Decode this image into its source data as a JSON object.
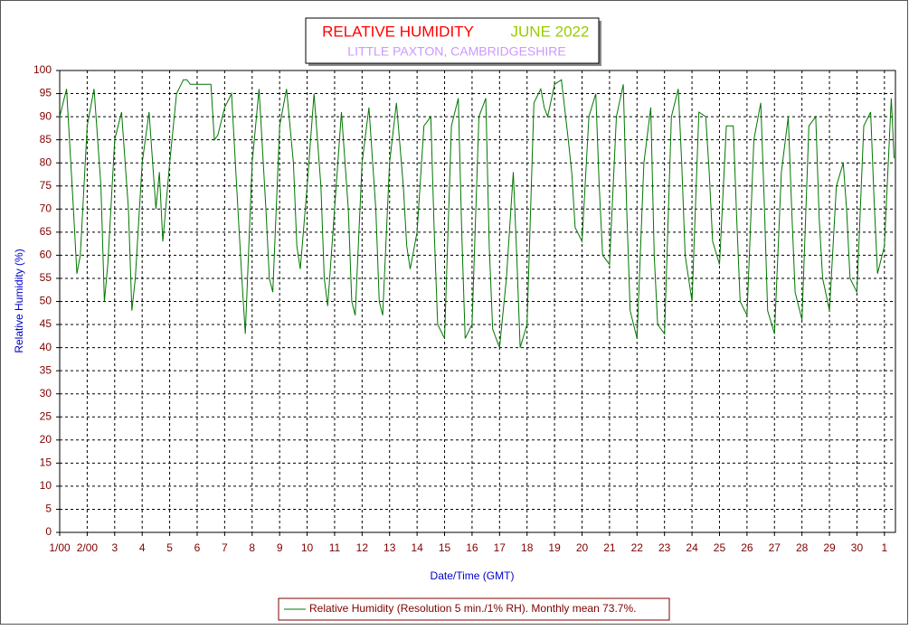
{
  "chart_data": {
    "type": "line",
    "title": "RELATIVE HUMIDITY",
    "title_period": "JUNE 2022",
    "subtitle": "LITTLE PAXTON, CAMBRIDGESHIRE",
    "x_label": "Date/Time (GMT)",
    "y_label": "Relative Humidity (%)",
    "x": [
      1,
      1.25,
      1.5,
      1.625,
      1.75,
      2,
      2.25,
      2.5,
      2.625,
      2.75,
      3,
      3.25,
      3.5,
      3.625,
      3.75,
      4,
      4.25,
      4.5,
      4.625,
      4.75,
      5,
      5.25,
      5.5,
      5.625,
      5.75,
      6,
      6.25,
      6.5,
      6.625,
      6.75,
      7,
      7.25,
      7.5,
      7.625,
      7.75,
      8,
      8.25,
      8.5,
      8.625,
      8.75,
      9,
      9.25,
      9.5,
      9.625,
      9.75,
      10,
      10.25,
      10.5,
      10.625,
      10.75,
      11,
      11.25,
      11.5,
      11.625,
      11.75,
      12,
      12.25,
      12.5,
      12.625,
      12.75,
      13,
      13.25,
      13.5,
      13.625,
      13.75,
      14,
      14.25,
      14.5,
      14.625,
      14.75,
      15,
      15.25,
      15.5,
      15.625,
      15.75,
      16,
      16.25,
      16.5,
      16.625,
      16.75,
      17,
      17.25,
      17.5,
      17.625,
      17.75,
      18,
      18.25,
      18.5,
      18.625,
      18.75,
      19,
      19.25,
      19.5,
      19.625,
      19.75,
      20,
      20.25,
      20.5,
      20.625,
      20.75,
      21,
      21.25,
      21.5,
      21.625,
      21.75,
      22,
      22.25,
      22.5,
      22.625,
      22.75,
      23,
      23.25,
      23.5,
      23.625,
      23.75,
      24,
      24.25,
      24.5,
      24.625,
      24.75,
      25,
      25.25,
      25.5,
      25.625,
      25.75,
      26,
      26.25,
      26.5,
      26.625,
      26.75,
      27,
      27.25,
      27.5,
      27.625,
      27.75,
      28,
      28.25,
      28.5,
      28.625,
      28.75,
      29,
      29.25,
      29.5,
      29.625,
      29.75,
      30,
      30.25,
      30.5,
      30.625,
      30.75,
      31,
      31.25,
      31.35
    ],
    "series": [
      {
        "name": "Relative Humidity (Resolution 5 min./1% RH). Monthly mean 73.7%.",
        "color": "#007700",
        "values": [
          90,
          96,
          70,
          56,
          60,
          88,
          96,
          75,
          50,
          58,
          85,
          91,
          70,
          48,
          55,
          80,
          91,
          70,
          78,
          63,
          80,
          95,
          98,
          98,
          97,
          97,
          97,
          97,
          85,
          86,
          92,
          95,
          68,
          55,
          43,
          80,
          96,
          70,
          55,
          52,
          88,
          96,
          80,
          62,
          57,
          75,
          95,
          75,
          55,
          49,
          70,
          91,
          70,
          50,
          47,
          80,
          92,
          70,
          50,
          47,
          80,
          93,
          75,
          62,
          57,
          65,
          88,
          90,
          65,
          45,
          42,
          88,
          94,
          65,
          42,
          45,
          90,
          94,
          62,
          44,
          40,
          55,
          78,
          60,
          40,
          45,
          93,
          96,
          92,
          90,
          97,
          98,
          85,
          78,
          66,
          63,
          90,
          95,
          75,
          60,
          58,
          90,
          97,
          70,
          48,
          42,
          80,
          92,
          60,
          45,
          43,
          90,
          96,
          80,
          60,
          50,
          91,
          90,
          78,
          63,
          58,
          88,
          88,
          68,
          50,
          47,
          85,
          93,
          72,
          48,
          43,
          78,
          90,
          70,
          52,
          46,
          88,
          90,
          68,
          55,
          48,
          75,
          80,
          70,
          55,
          52,
          88,
          91,
          72,
          56,
          62,
          94,
          81
        ]
      }
    ],
    "xlim": [
      1,
      31.4
    ],
    "xticks": [
      {
        "value": 1,
        "label": "1/00"
      },
      {
        "value": 2,
        "label": "2/00"
      },
      3,
      4,
      5,
      6,
      7,
      8,
      9,
      10,
      11,
      12,
      13,
      14,
      15,
      16,
      17,
      18,
      19,
      20,
      21,
      22,
      23,
      24,
      25,
      26,
      27,
      28,
      29,
      30,
      {
        "value": 31,
        "label": "1"
      }
    ],
    "ylim": [
      0,
      100
    ],
    "yticks": [
      0,
      5,
      10,
      15,
      20,
      25,
      30,
      35,
      40,
      45,
      50,
      55,
      60,
      65,
      70,
      75,
      80,
      85,
      90,
      95,
      100
    ],
    "grid": true
  }
}
